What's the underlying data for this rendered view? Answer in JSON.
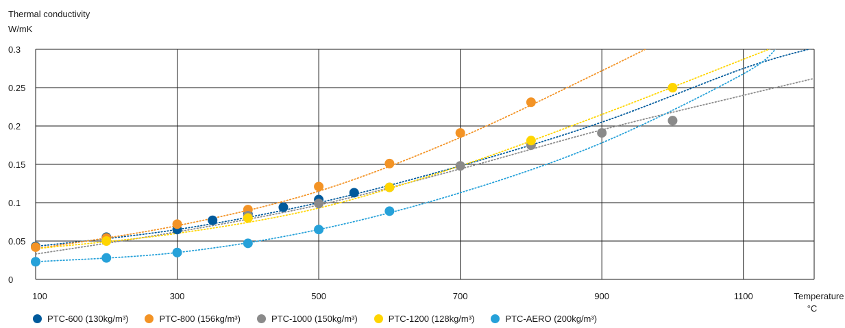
{
  "chart_data": {
    "type": "scatter",
    "ylabel_line1": "Thermal conductivity",
    "ylabel_line2": "W/mK",
    "xlabel_line1": "Temperature",
    "xlabel_line2": "°C",
    "xlim": [
      100,
      1200
    ],
    "ylim": [
      0,
      0.3
    ],
    "xticks": [
      100,
      300,
      500,
      700,
      900,
      1100
    ],
    "xtick_labels": [
      "100",
      "300",
      "500",
      "700",
      "900",
      "1100"
    ],
    "xgrid": [
      100,
      300,
      500,
      700,
      900,
      1100,
      1200
    ],
    "yticks": [
      0,
      0.05,
      0.1,
      0.15,
      0.2,
      0.25,
      0.3
    ],
    "ytick_labels": [
      "0",
      "0.05",
      "0.1",
      "0.15",
      "0.2",
      "0.25",
      "0.3"
    ],
    "grid": true,
    "legend_position": "bottom",
    "series": [
      {
        "name": "PTC-600 (130kg/m³)",
        "color": "#005a9c",
        "x": [
          100,
          200,
          300,
          350,
          400,
          450,
          500,
          550
        ],
        "y": [
          0.043,
          0.055,
          0.065,
          0.077,
          0.085,
          0.094,
          0.104,
          0.113
        ],
        "trend": [
          [
            100,
            0.043
          ],
          [
            300,
            0.065
          ],
          [
            500,
            0.1
          ],
          [
            700,
            0.148
          ],
          [
            900,
            0.205
          ],
          [
            1100,
            0.275
          ],
          [
            1200,
            0.302
          ]
        ]
      },
      {
        "name": "PTC-800 (156kg/m³)",
        "color": "#f39325",
        "x": [
          100,
          200,
          300,
          400,
          500,
          600,
          700,
          800
        ],
        "y": [
          0.042,
          0.054,
          0.072,
          0.091,
          0.121,
          0.151,
          0.191,
          0.231
        ],
        "trend": [
          [
            100,
            0.04
          ],
          [
            300,
            0.07
          ],
          [
            500,
            0.115
          ],
          [
            700,
            0.185
          ],
          [
            900,
            0.272
          ],
          [
            1000,
            0.318
          ]
        ]
      },
      {
        "name": "PTC-1000 (150kg/m³)",
        "color": "#8a8a8a",
        "x": [
          400,
          500,
          600,
          700,
          800,
          900,
          1000
        ],
        "y": [
          0.083,
          0.099,
          0.12,
          0.148,
          0.175,
          0.191,
          0.207
        ],
        "trend": [
          [
            100,
            0.033
          ],
          [
            300,
            0.062
          ],
          [
            500,
            0.097
          ],
          [
            700,
            0.144
          ],
          [
            900,
            0.195
          ],
          [
            1100,
            0.24
          ],
          [
            1200,
            0.262
          ]
        ]
      },
      {
        "name": "PTC-1200 (128kg/m³)",
        "color": "#ffd500",
        "x": [
          200,
          400,
          600,
          800,
          1000
        ],
        "y": [
          0.05,
          0.08,
          0.12,
          0.181,
          0.25
        ],
        "trend": [
          [
            100,
            0.04
          ],
          [
            300,
            0.06
          ],
          [
            500,
            0.093
          ],
          [
            700,
            0.148
          ],
          [
            900,
            0.215
          ],
          [
            1100,
            0.287
          ],
          [
            1150,
            0.305
          ]
        ]
      },
      {
        "name": "PTC-AERO (200kg/m³)",
        "color": "#26a1d9",
        "x": [
          100,
          200,
          300,
          400,
          500,
          600
        ],
        "y": [
          0.023,
          0.028,
          0.035,
          0.047,
          0.065,
          0.089
        ],
        "trend": [
          [
            100,
            0.023
          ],
          [
            300,
            0.035
          ],
          [
            500,
            0.065
          ],
          [
            700,
            0.113
          ],
          [
            900,
            0.178
          ],
          [
            1100,
            0.268
          ],
          [
            1150,
            0.305
          ]
        ]
      }
    ]
  }
}
